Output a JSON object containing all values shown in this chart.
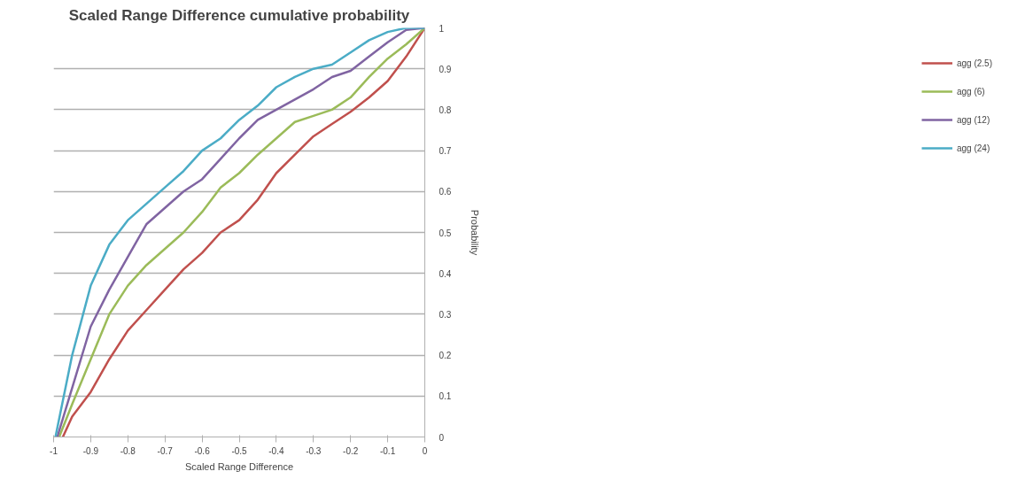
{
  "chart_data": {
    "type": "line",
    "title": "Scaled Range Difference cumulative probability",
    "xlabel": "Scaled Range Difference",
    "ylabel": "Probability",
    "xlim": [
      -1,
      0
    ],
    "ylim": [
      0,
      1
    ],
    "xticks": [
      -1,
      -0.9,
      -0.8,
      -0.7,
      -0.6,
      -0.5,
      -0.4,
      -0.3,
      -0.2,
      -0.1,
      0
    ],
    "yticks": [
      0,
      0.1,
      0.2,
      0.3,
      0.4,
      0.5,
      0.6,
      0.7,
      0.8,
      0.9,
      1
    ],
    "grid": "y",
    "legend": "right",
    "marker": "none",
    "line_style": "solid",
    "series": [
      {
        "name": "agg (2.5)",
        "color": "#c0504d",
        "x": [
          -0.975,
          -0.95,
          -0.9,
          -0.85,
          -0.8,
          -0.75,
          -0.7,
          -0.65,
          -0.6,
          -0.55,
          -0.5,
          -0.45,
          -0.4,
          -0.35,
          -0.3,
          -0.25,
          -0.2,
          -0.15,
          -0.1,
          -0.05,
          0
        ],
        "values": [
          0,
          0.05,
          0.11,
          0.19,
          0.26,
          0.31,
          0.36,
          0.41,
          0.45,
          0.5,
          0.53,
          0.58,
          0.645,
          0.69,
          0.735,
          0.765,
          0.795,
          0.83,
          0.87,
          0.93,
          1
        ]
      },
      {
        "name": "agg (6)",
        "color": "#9bbb59",
        "x": [
          -0.985,
          -0.95,
          -0.9,
          -0.85,
          -0.8,
          -0.75,
          -0.7,
          -0.65,
          -0.6,
          -0.55,
          -0.5,
          -0.45,
          -0.4,
          -0.35,
          -0.3,
          -0.25,
          -0.2,
          -0.15,
          -0.1,
          -0.05,
          0
        ],
        "values": [
          0,
          0.08,
          0.19,
          0.3,
          0.37,
          0.42,
          0.46,
          0.5,
          0.55,
          0.61,
          0.645,
          0.69,
          0.73,
          0.77,
          0.785,
          0.8,
          0.83,
          0.88,
          0.925,
          0.96,
          1
        ]
      },
      {
        "name": "agg (12)",
        "color": "#8064a2",
        "x": [
          -0.99,
          -0.95,
          -0.9,
          -0.85,
          -0.8,
          -0.75,
          -0.7,
          -0.65,
          -0.6,
          -0.55,
          -0.5,
          -0.45,
          -0.4,
          -0.35,
          -0.3,
          -0.25,
          -0.2,
          -0.15,
          -0.1,
          -0.05,
          0
        ],
        "values": [
          0,
          0.12,
          0.27,
          0.36,
          0.44,
          0.52,
          0.56,
          0.6,
          0.63,
          0.68,
          0.73,
          0.775,
          0.8,
          0.825,
          0.85,
          0.88,
          0.895,
          0.93,
          0.965,
          0.995,
          1
        ]
      },
      {
        "name": "agg (24)",
        "color": "#4bacc6",
        "x": [
          -0.995,
          -0.95,
          -0.9,
          -0.85,
          -0.8,
          -0.75,
          -0.7,
          -0.65,
          -0.6,
          -0.55,
          -0.5,
          -0.45,
          -0.4,
          -0.35,
          -0.3,
          -0.25,
          -0.2,
          -0.15,
          -0.1,
          -0.05,
          0
        ],
        "values": [
          0,
          0.2,
          0.37,
          0.47,
          0.53,
          0.57,
          0.61,
          0.65,
          0.7,
          0.73,
          0.775,
          0.81,
          0.855,
          0.88,
          0.9,
          0.91,
          0.94,
          0.97,
          0.99,
          1,
          1
        ]
      }
    ]
  }
}
